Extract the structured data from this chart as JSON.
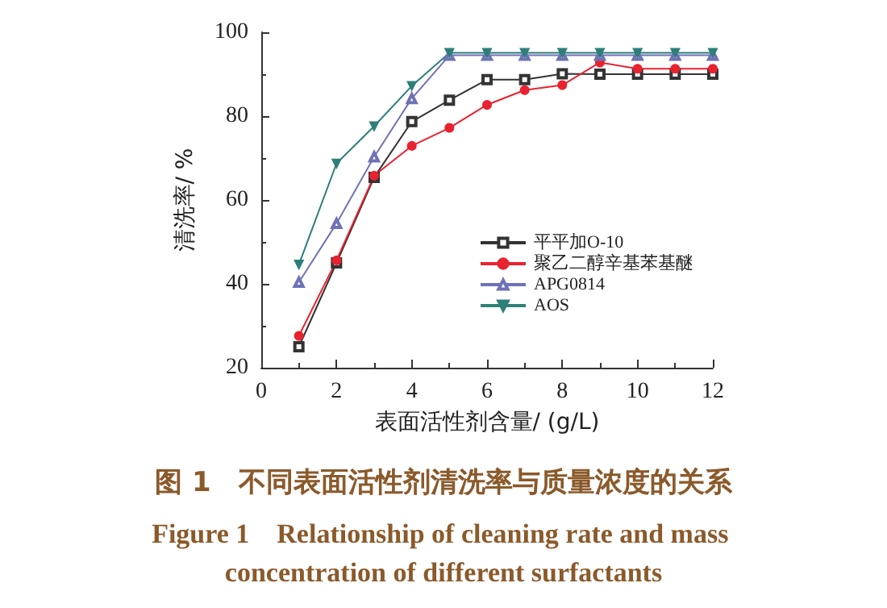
{
  "chart_data": {
    "type": "line",
    "title": "图 1　不同表面活性剂清洗率与质量浓度的关系",
    "subtitle": "Figure 1　Relationship of cleaning rate and mass concentration of different surfactants",
    "xlabel": "表面活性剂含量/ (g/L)",
    "ylabel": "清洗率/ %",
    "x": [
      1,
      2,
      3,
      4,
      5,
      6,
      7,
      8,
      9,
      10,
      11,
      12
    ],
    "series": [
      {
        "name": "平平加O-10",
        "color": "#333333",
        "marker": "square",
        "values": [
          25,
          45,
          65.4,
          78.7,
          83.8,
          88.7,
          88.7,
          90.1,
          90,
          90,
          90,
          90
        ]
      },
      {
        "name": "聚乙二醇辛基苯基醚",
        "color": "#e8232f",
        "marker": "circle",
        "values": [
          27.6,
          45.6,
          65.8,
          72.9,
          77.2,
          82.7,
          86.2,
          87.4,
          92.8,
          91.3,
          91.3,
          91.3
        ]
      },
      {
        "name": "APG0814",
        "color": "#6f72b5",
        "marker": "triangle",
        "values": [
          40.4,
          54.4,
          70.3,
          84.2,
          94.5,
          94.5,
          94.5,
          94.5,
          94.5,
          94.5,
          94.5,
          94.5
        ]
      },
      {
        "name": "AOS",
        "color": "#2e7f7a",
        "marker": "triangle-down",
        "values": [
          44.6,
          68.7,
          77.6,
          87.2,
          95.1,
          95.1,
          95.1,
          95.1,
          95.1,
          95.1,
          95.1,
          95.1
        ]
      }
    ],
    "xlim": [
      0,
      12
    ],
    "xticks": [
      0,
      2,
      4,
      6,
      8,
      10,
      12
    ],
    "ylim": [
      20,
      100
    ],
    "yticks": [
      20,
      40,
      60,
      80,
      100
    ],
    "grid": false,
    "legend": "right",
    "line_style": "solid"
  }
}
